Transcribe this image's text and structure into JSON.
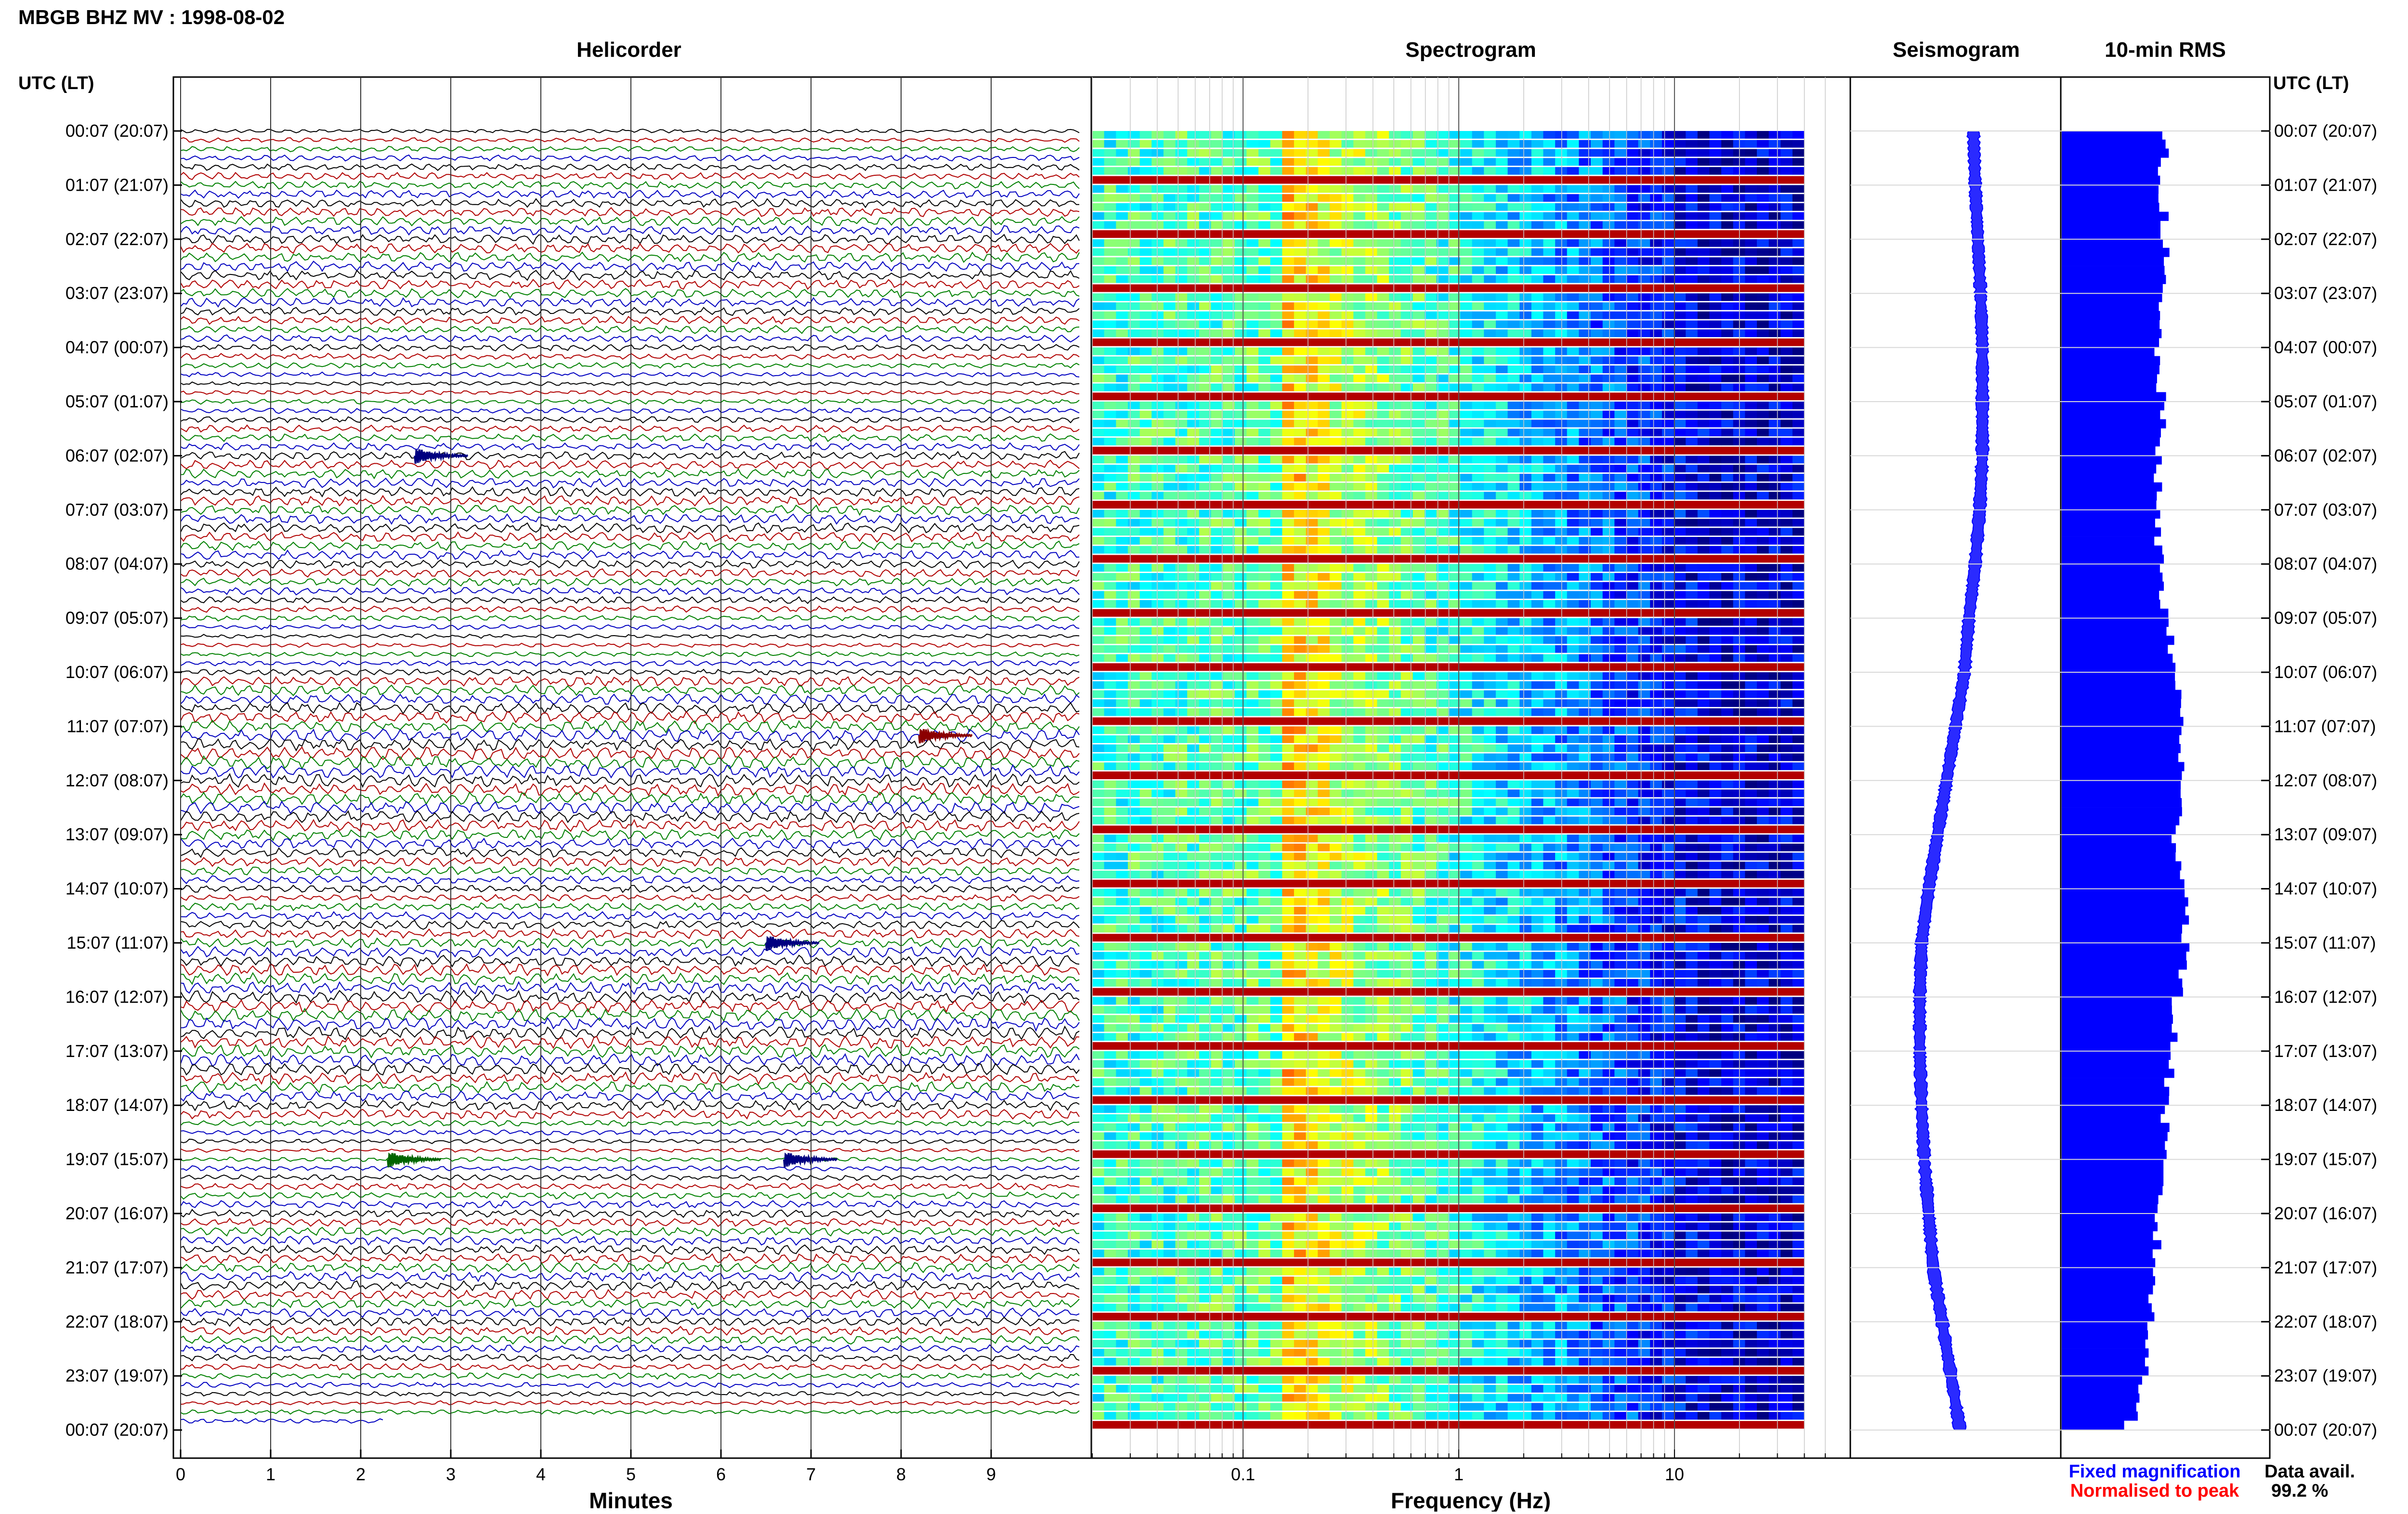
{
  "title": "MBGB BHZ MV : 1998-08-02",
  "time_axis_label": "UTC (LT)",
  "panels": {
    "helicorder": "Helicorder",
    "spectrogram": "Spectrogram",
    "seismogram": "Seismogram",
    "rms": "10-min RMS"
  },
  "legend": {
    "fixed": "Fixed magnification",
    "normalised": "Normalised to peak",
    "fixed_color": "#0000ff",
    "normalised_color": "#ff0000"
  },
  "data_avail": {
    "label": "Data avail.",
    "value": "99.2 %"
  },
  "trace_colors": [
    "#000000",
    "#b00000",
    "#008000",
    "#0000c0"
  ],
  "spectrogram_colormap": "jet",
  "chart_data": [
    {
      "type": "line",
      "name": "helicorder",
      "xlabel": "Minutes",
      "x_ticks": [
        "0",
        "1",
        "2",
        "3",
        "4",
        "5",
        "6",
        "7",
        "8",
        "9"
      ],
      "xlim": [
        0,
        10
      ],
      "time_ticks": [
        "00:07 (20:07)",
        "01:07 (21:07)",
        "02:07 (22:07)",
        "03:07 (23:07)",
        "04:07 (00:07)",
        "05:07 (01:07)",
        "06:07 (02:07)",
        "07:07 (03:07)",
        "08:07 (04:07)",
        "09:07 (05:07)",
        "10:07 (06:07)",
        "11:07 (07:07)",
        "12:07 (08:07)",
        "13:07 (09:07)",
        "14:07 (10:07)",
        "15:07 (11:07)",
        "16:07 (12:07)",
        "17:07 (13:07)",
        "18:07 (14:07)",
        "19:07 (15:07)",
        "20:07 (16:07)",
        "21:07 (17:07)",
        "22:07 (18:07)",
        "23:07 (19:07)",
        "00:07 (20:07)"
      ],
      "lines_per_hour": 6,
      "total_lines": 144,
      "events": [
        {
          "line": 36,
          "minute": 2.6,
          "color": "#000080"
        },
        {
          "line": 67,
          "minute": 8.2,
          "color": "#8b0000"
        },
        {
          "line": 90,
          "minute": 6.5,
          "color": "#000080"
        },
        {
          "line": 114,
          "minute": 2.3,
          "color": "#006400"
        },
        {
          "line": 114,
          "minute": 6.7,
          "color": "#000080"
        }
      ]
    },
    {
      "type": "heatmap",
      "name": "spectrogram",
      "xlabel": "Frequency (Hz)",
      "x_scale": "log",
      "x_ticks": [
        "0.1",
        "1",
        "10"
      ],
      "xlim": [
        0.02,
        50
      ],
      "peak_band_hz": [
        0.15,
        0.25
      ],
      "dominant_color": "jet"
    },
    {
      "type": "line",
      "name": "seismogram",
      "description_values": "hourly mean offset (arbitrary units, 0 = panel centre)",
      "hourly_offsets": [
        0.2,
        0.22,
        0.25,
        0.28,
        0.3,
        0.3,
        0.3,
        0.27,
        0.22,
        0.15,
        0.1,
        0.0,
        -0.1,
        -0.2,
        -0.3,
        -0.38,
        -0.4,
        -0.4,
        -0.38,
        -0.35,
        -0.3,
        -0.25,
        -0.15,
        -0.05,
        0.05
      ]
    },
    {
      "type": "bar",
      "name": "10-min RMS",
      "orientation": "horizontal",
      "xlim": [
        0,
        1
      ],
      "hourly_rms": [
        0.5,
        0.48,
        0.5,
        0.47,
        0.46,
        0.48,
        0.47,
        0.45,
        0.48,
        0.5,
        0.55,
        0.58,
        0.57,
        0.55,
        0.6,
        0.6,
        0.55,
        0.53,
        0.5,
        0.48,
        0.46,
        0.45,
        0.42,
        0.4,
        0.35
      ]
    }
  ]
}
